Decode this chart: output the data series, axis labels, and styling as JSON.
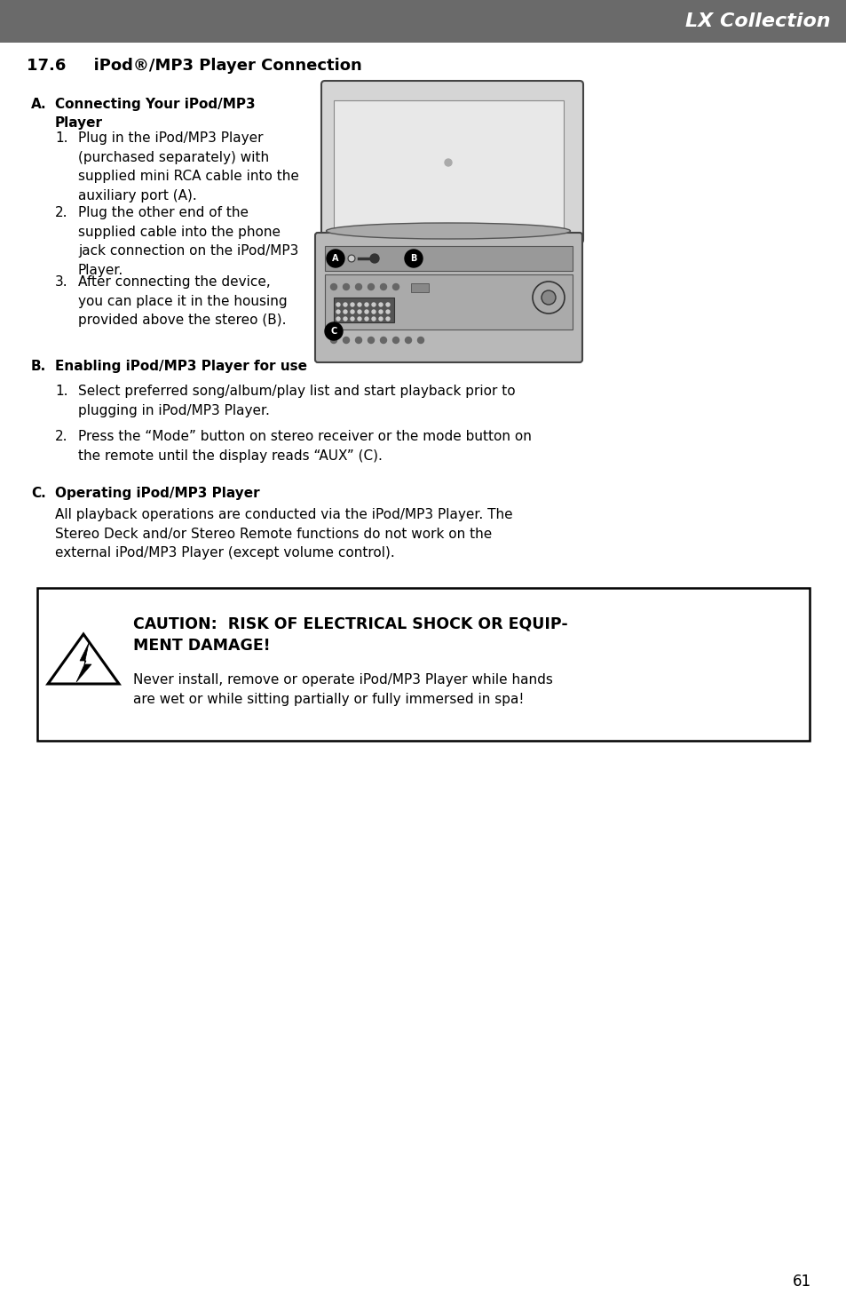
{
  "page_bg": "#ffffff",
  "header_bg": "#6a6a6a",
  "header_text": "LX Collection",
  "header_text_color": "#ffffff",
  "section_title": "17.6     iPod®/MP3 Player Connection",
  "section_A_label": "A.",
  "section_A_header": "Connecting Your iPod/MP3\nPlayer",
  "section_A_items": [
    "Plug in the iPod/MP3 Player\n(purchased separately) with\nsupplied mini RCA cable into the\nauxiliary port (A).",
    "Plug the other end of the\nsupplied cable into the phone\njack connection on the iPod/MP3\nPlayer.",
    "After connecting the device,\nyou can place it in the housing\nprovided above the stereo (B)."
  ],
  "section_B_label": "B.",
  "section_B_header": "Enabling iPod/MP3 Player for use",
  "section_B_items": [
    "Select preferred song/album/play list and start playback prior to\nplugging in iPod/MP3 Player.",
    "Press the “Mode” button on stereo receiver or the mode button on\nthe remote until the display reads “AUX” (C)."
  ],
  "section_C_label": "C.",
  "section_C_header": "Operating iPod/MP3 Player",
  "section_C_text": "All playback operations are conducted via the iPod/MP3 Player. The\nStereo Deck and/or Stereo Remote functions do not work on the\nexternal iPod/MP3 Player (except volume control).",
  "caution_title_bold": "CAUTION:  RISK OF ELECTRICAL SHOCK OR EQUIP-\nMENT DAMAGE!",
  "caution_text": "Never install, remove or operate iPod/MP3 Player while hands\nare wet or while sitting partially or fully immersed in spa!",
  "page_number": "61",
  "text_color": "#000000",
  "body_fontsize": 11.0,
  "title_fontsize": 13.0,
  "caution_border_color": "#000000",
  "caution_bg": "#ffffff"
}
